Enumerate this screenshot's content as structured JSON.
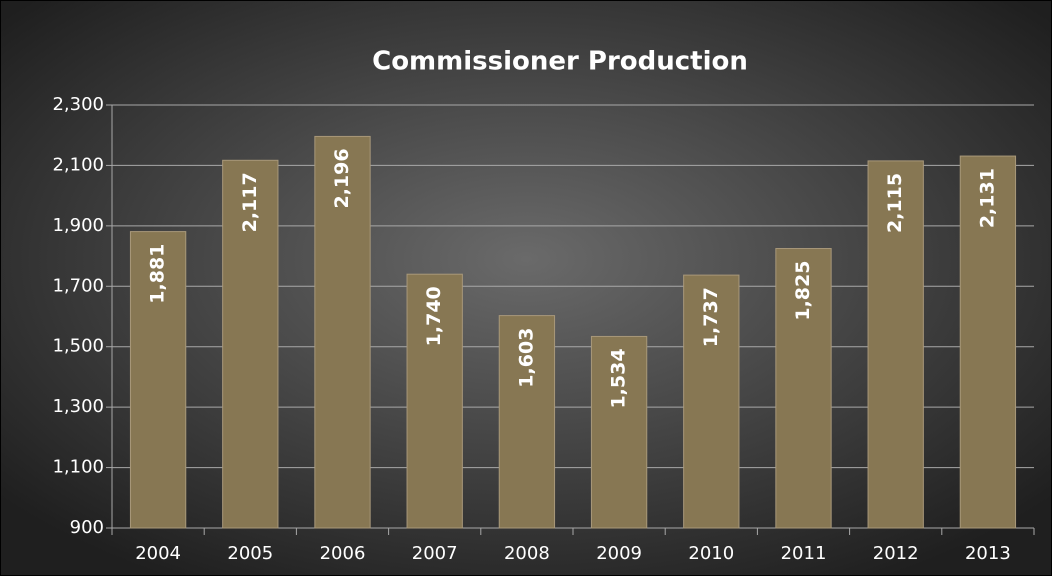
{
  "chart_data": {
    "type": "bar",
    "title": "Commissioner Production",
    "categories": [
      "2004",
      "2005",
      "2006",
      "2007",
      "2008",
      "2009",
      "2010",
      "2011",
      "2012",
      "2013"
    ],
    "values": [
      1881,
      2117,
      2196,
      1740,
      1603,
      1534,
      1737,
      1825,
      2115,
      2131
    ],
    "value_labels": [
      "1,881",
      "2,117",
      "2,196",
      "1,740",
      "1,603",
      "1,534",
      "1,737",
      "1,825",
      "2,115",
      "2,131"
    ],
    "color": "#877753",
    "ylim": [
      900,
      2300
    ],
    "yticks": [
      900,
      {
        "value": 1100,
        "label": "1,100"
      },
      {
        "value": 1300,
        "label": "1,300"
      },
      {
        "value": 1500,
        "label": "1,500"
      },
      {
        "value": 1700,
        "label": "1,700"
      },
      {
        "value": 1900,
        "label": "1,900"
      },
      {
        "value": 2100,
        "label": "2,100"
      },
      {
        "value": 2300,
        "label": "2,300"
      }
    ],
    "grid": true
  }
}
